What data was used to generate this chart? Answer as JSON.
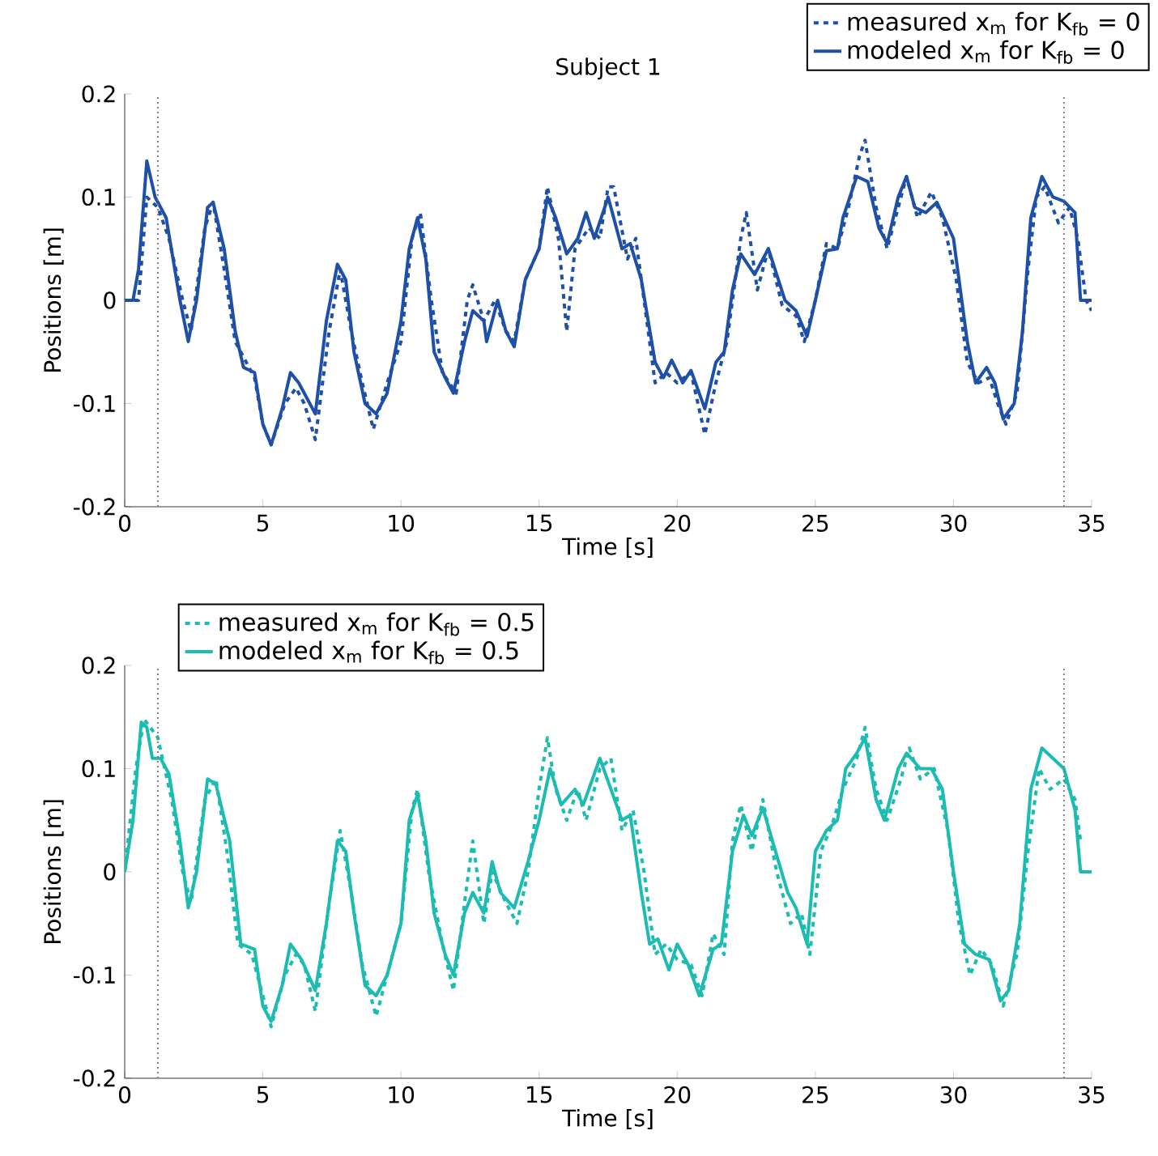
{
  "chart_data": [
    {
      "type": "line",
      "title": "Subject 1",
      "xlabel": "Time [s]",
      "ylabel": "Positions [m]",
      "xlim": [
        0,
        35
      ],
      "ylim": [
        -0.2,
        0.2
      ],
      "xticks": [
        0,
        5,
        10,
        15,
        20,
        25,
        30,
        35
      ],
      "yticks": [
        -0.2,
        -0.1,
        0,
        0.1,
        0.2
      ],
      "legend": "top right",
      "ref_lines": [
        {
          "axis": "x",
          "value": 1.2,
          "color": "#808080",
          "line_style": "dotted"
        },
        {
          "axis": "x",
          "value": 34,
          "color": "#808080",
          "line_style": "dotted"
        }
      ],
      "series": [
        {
          "name": "measured x$_{m}$ for K$_{fb}$ = 0",
          "color": "#1f50a8",
          "line_style": "dashed",
          "x": [
            0,
            0.5,
            0.8,
            1.2,
            1.6,
            2.1,
            2.4,
            2.9,
            3.2,
            3.6,
            4.0,
            4.3,
            4.7,
            5.0,
            5.3,
            5.8,
            6.2,
            6.5,
            6.9,
            7.4,
            7.8,
            8.2,
            8.6,
            9.0,
            9.5,
            10.0,
            10.4,
            10.7,
            11.1,
            11.5,
            12.0,
            12.4,
            12.6,
            13.0,
            13.4,
            13.8,
            14.1,
            14.5,
            15.0,
            15.3,
            15.7,
            16.0,
            16.3,
            16.8,
            17.2,
            17.5,
            17.7,
            18.2,
            18.5,
            18.8,
            19.2,
            19.6,
            20.0,
            20.5,
            21.0,
            21.4,
            21.8,
            22.3,
            22.5,
            22.9,
            23.3,
            23.8,
            24.3,
            24.6,
            25.0,
            25.4,
            25.8,
            26.2,
            26.6,
            26.8,
            27.2,
            27.6,
            28.0,
            28.3,
            28.7,
            29.2,
            29.6,
            30.1,
            30.5,
            30.9,
            31.3,
            31.6,
            31.9,
            32.3,
            32.7,
            33.0,
            33.3,
            33.8,
            34.2,
            34.5,
            34.8,
            35.0
          ],
          "values": [
            0,
            0,
            0.1,
            0.09,
            0.06,
            0,
            -0.03,
            0.07,
            0.095,
            0.03,
            -0.04,
            -0.055,
            -0.075,
            -0.12,
            -0.14,
            -0.1,
            -0.085,
            -0.1,
            -0.135,
            -0.03,
            0.03,
            -0.03,
            -0.08,
            -0.125,
            -0.08,
            -0.04,
            0.06,
            0.085,
            0,
            -0.07,
            -0.09,
            0,
            0.015,
            -0.02,
            0,
            -0.03,
            -0.04,
            0.02,
            0.05,
            0.11,
            0.06,
            -0.03,
            0.05,
            0.07,
            0.06,
            0.11,
            0.11,
            0.04,
            0.06,
            0,
            -0.08,
            -0.07,
            -0.08,
            -0.07,
            -0.13,
            -0.08,
            -0.04,
            0.06,
            0.085,
            0.01,
            0.05,
            -0.005,
            -0.015,
            -0.04,
            0,
            0.055,
            0.05,
            0.09,
            0.14,
            0.155,
            0.09,
            0.05,
            0.09,
            0.12,
            0.08,
            0.105,
            0.08,
            0.02,
            -0.06,
            -0.08,
            -0.075,
            -0.1,
            -0.12,
            -0.09,
            0.03,
            0.1,
            0.11,
            0.075,
            0.09,
            0.06,
            0,
            -0.01
          ]
        },
        {
          "name": "modeled x$_{m}$ for K$_{fb}$ = 0",
          "color": "#1f50a8",
          "line_style": "solid",
          "x": [
            0,
            0.3,
            0.5,
            0.8,
            1.1,
            1.5,
            2.0,
            2.3,
            2.6,
            3.0,
            3.2,
            3.6,
            4.0,
            4.3,
            4.7,
            5.0,
            5.3,
            5.7,
            6.0,
            6.3,
            6.9,
            7.3,
            7.7,
            8.0,
            8.3,
            8.7,
            9.1,
            9.5,
            10.0,
            10.3,
            10.6,
            10.9,
            11.2,
            11.6,
            11.9,
            12.3,
            12.6,
            13.0,
            13.1,
            13.5,
            13.8,
            14.1,
            14.5,
            15.0,
            15.3,
            15.6,
            16.0,
            16.4,
            16.7,
            17.0,
            17.5,
            18.0,
            18.3,
            18.7,
            19.2,
            19.5,
            19.8,
            20.2,
            20.5,
            21.0,
            21.4,
            21.7,
            22.0,
            22.3,
            22.8,
            23.3,
            23.9,
            24.3,
            24.7,
            25.0,
            25.4,
            25.8,
            26.0,
            26.5,
            26.9,
            27.3,
            27.6,
            28.0,
            28.3,
            28.6,
            29.0,
            29.4,
            30.0,
            30.5,
            30.8,
            31.2,
            31.5,
            31.8,
            32.2,
            32.5,
            32.8,
            33.2,
            33.6,
            34.0,
            34.4,
            34.6,
            35.0
          ],
          "values": [
            0,
            0,
            0.03,
            0.135,
            0.1,
            0.08,
            0,
            -0.04,
            0,
            0.09,
            0.095,
            0.05,
            -0.03,
            -0.065,
            -0.07,
            -0.12,
            -0.14,
            -0.105,
            -0.07,
            -0.08,
            -0.11,
            -0.02,
            0.035,
            0.02,
            -0.05,
            -0.1,
            -0.11,
            -0.09,
            -0.02,
            0.05,
            0.08,
            0.04,
            -0.05,
            -0.075,
            -0.09,
            -0.04,
            -0.01,
            -0.02,
            -0.04,
            0,
            -0.03,
            -0.045,
            0.02,
            0.05,
            0.1,
            0.08,
            0.045,
            0.06,
            0.085,
            0.06,
            0.1,
            0.05,
            0.055,
            0.02,
            -0.06,
            -0.075,
            -0.058,
            -0.08,
            -0.068,
            -0.105,
            -0.06,
            -0.05,
            0.01,
            0.045,
            0.025,
            0.05,
            0,
            -0.01,
            -0.035,
            0,
            0.048,
            0.05,
            0.08,
            0.12,
            0.115,
            0.07,
            0.055,
            0.1,
            0.12,
            0.09,
            0.085,
            0.095,
            0.06,
            -0.04,
            -0.08,
            -0.065,
            -0.08,
            -0.115,
            -0.1,
            -0.03,
            0.08,
            0.12,
            0.1,
            0.096,
            0.085,
            0,
            0
          ]
        }
      ]
    },
    {
      "type": "line",
      "xlabel": "Time [s]",
      "ylabel": "Positions [m]",
      "xlim": [
        0,
        35
      ],
      "ylim": [
        -0.2,
        0.2
      ],
      "xticks": [
        0,
        5,
        10,
        15,
        20,
        25,
        30,
        35
      ],
      "yticks": [
        -0.2,
        -0.1,
        0,
        0.1,
        0.2
      ],
      "legend": "top left",
      "ref_lines": [
        {
          "axis": "x",
          "value": 1.2,
          "color": "#808080",
          "line_style": "dotted"
        },
        {
          "axis": "x",
          "value": 34,
          "color": "#808080",
          "line_style": "dotted"
        }
      ],
      "series": [
        {
          "name": "measured x$_{m}$ for K$_{fb}$ = 0.5",
          "color": "#1cbcb2",
          "line_style": "dashed",
          "x": [
            0,
            0.4,
            0.7,
            1.2,
            1.7,
            2.1,
            2.4,
            2.9,
            3.3,
            3.7,
            4.1,
            4.6,
            5.0,
            5.3,
            5.8,
            6.2,
            6.5,
            6.9,
            7.4,
            7.8,
            8.2,
            8.6,
            9.1,
            9.5,
            10.0,
            10.4,
            10.6,
            11.0,
            11.5,
            11.9,
            12.3,
            12.6,
            13.0,
            13.3,
            13.8,
            14.2,
            14.6,
            15.0,
            15.3,
            15.6,
            16.0,
            16.4,
            16.7,
            17.2,
            17.6,
            18.0,
            18.4,
            18.8,
            19.2,
            19.6,
            20.0,
            20.5,
            20.9,
            21.3,
            21.7,
            22.0,
            22.3,
            22.7,
            23.1,
            23.6,
            24.1,
            24.5,
            24.8,
            25.2,
            25.6,
            26.0,
            26.5,
            26.8,
            27.2,
            27.6,
            28.1,
            28.4,
            28.8,
            29.3,
            29.8,
            30.2,
            30.6,
            31.0,
            31.4,
            31.8,
            32.3,
            32.7,
            33.1,
            33.5,
            34.0,
            34.4,
            34.6
          ],
          "values": [
            0,
            0.1,
            0.148,
            0.13,
            0.07,
            0,
            -0.03,
            0.07,
            0.09,
            0.02,
            -0.07,
            -0.08,
            -0.12,
            -0.15,
            -0.1,
            -0.08,
            -0.09,
            -0.135,
            -0.03,
            0.04,
            -0.02,
            -0.09,
            -0.14,
            -0.1,
            -0.05,
            0.06,
            0.08,
            0,
            -0.07,
            -0.115,
            -0.03,
            0.03,
            -0.05,
            0,
            -0.03,
            -0.05,
            0,
            0.08,
            0.13,
            0.08,
            0.05,
            0.08,
            0.05,
            0.1,
            0.11,
            0.04,
            0.06,
            0,
            -0.08,
            -0.07,
            -0.085,
            -0.09,
            -0.12,
            -0.06,
            -0.08,
            0.03,
            0.065,
            0.02,
            0.07,
            0,
            -0.05,
            -0.04,
            -0.08,
            0.02,
            0.045,
            0.08,
            0.11,
            0.14,
            0.08,
            0.05,
            0.09,
            0.12,
            0.09,
            0.1,
            0.04,
            -0.05,
            -0.1,
            -0.075,
            -0.09,
            -0.13,
            -0.08,
            0.02,
            0.1,
            0.08,
            0.09,
            0.07,
            0.03
          ]
        },
        {
          "name": "modeled x$_{m}$ for K$_{fb}$ = 0.5",
          "color": "#1cbcb2",
          "line_style": "solid",
          "x": [
            0,
            0.3,
            0.6,
            0.8,
            1.0,
            1.3,
            1.6,
            2.0,
            2.3,
            2.6,
            3.0,
            3.3,
            3.8,
            4.2,
            4.7,
            5.0,
            5.3,
            5.7,
            6.0,
            6.4,
            6.9,
            7.3,
            7.7,
            8.0,
            8.3,
            8.7,
            9.1,
            9.5,
            10.0,
            10.3,
            10.6,
            10.9,
            11.2,
            11.6,
            11.9,
            12.3,
            12.6,
            13.0,
            13.3,
            13.6,
            14.1,
            14.6,
            15.0,
            15.4,
            15.8,
            16.3,
            16.6,
            17.2,
            17.6,
            18.0,
            18.3,
            18.7,
            19.0,
            19.3,
            19.7,
            20.0,
            20.4,
            20.8,
            21.3,
            21.6,
            22.0,
            22.4,
            22.7,
            23.1,
            23.5,
            24.0,
            24.3,
            24.7,
            25.0,
            25.4,
            25.8,
            26.1,
            26.5,
            26.8,
            27.2,
            27.5,
            28.0,
            28.3,
            28.8,
            29.2,
            29.6,
            30.0,
            30.4,
            30.8,
            31.3,
            31.7,
            32.0,
            32.4,
            32.8,
            33.2,
            33.6,
            34.0,
            34.4,
            34.6,
            35.0
          ],
          "values": [
            0,
            0.05,
            0.145,
            0.14,
            0.11,
            0.11,
            0.095,
            0.03,
            -0.035,
            0,
            0.09,
            0.085,
            0.03,
            -0.07,
            -0.075,
            -0.13,
            -0.145,
            -0.11,
            -0.07,
            -0.085,
            -0.115,
            -0.05,
            0.03,
            0.02,
            -0.04,
            -0.11,
            -0.12,
            -0.1,
            -0.05,
            0.05,
            0.075,
            0.03,
            -0.04,
            -0.08,
            -0.1,
            -0.04,
            -0.02,
            -0.04,
            0.01,
            -0.02,
            -0.035,
            0.01,
            0.05,
            0.1,
            0.065,
            0.08,
            0.065,
            0.11,
            0.08,
            0.05,
            0.055,
            -0.02,
            -0.07,
            -0.065,
            -0.095,
            -0.07,
            -0.09,
            -0.12,
            -0.075,
            -0.07,
            0.02,
            0.055,
            0.035,
            0.062,
            0.025,
            -0.02,
            -0.035,
            -0.07,
            0.02,
            0.04,
            0.05,
            0.1,
            0.115,
            0.13,
            0.07,
            0.05,
            0.1,
            0.115,
            0.1,
            0.1,
            0.08,
            0,
            -0.07,
            -0.08,
            -0.085,
            -0.125,
            -0.115,
            -0.05,
            0.08,
            0.12,
            0.11,
            0.1,
            0.06,
            0,
            0
          ]
        }
      ]
    }
  ]
}
